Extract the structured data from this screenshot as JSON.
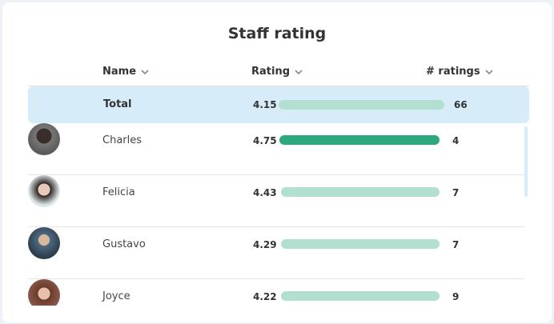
{
  "title": "Staff rating",
  "columns": [
    "Name",
    "Rating",
    "# ratings"
  ],
  "total": {
    "name": "Total",
    "rating": 4.15,
    "count": 66
  },
  "rows": [
    {
      "name": "Charles",
      "rating": 4.75,
      "count": 4
    },
    {
      "name": "Felicia",
      "rating": 4.43,
      "count": 7
    },
    {
      "name": "Gustavo",
      "rating": 4.29,
      "count": 7
    },
    {
      "name": "Joyce",
      "rating": 4.22,
      "count": 9
    }
  ]
}
